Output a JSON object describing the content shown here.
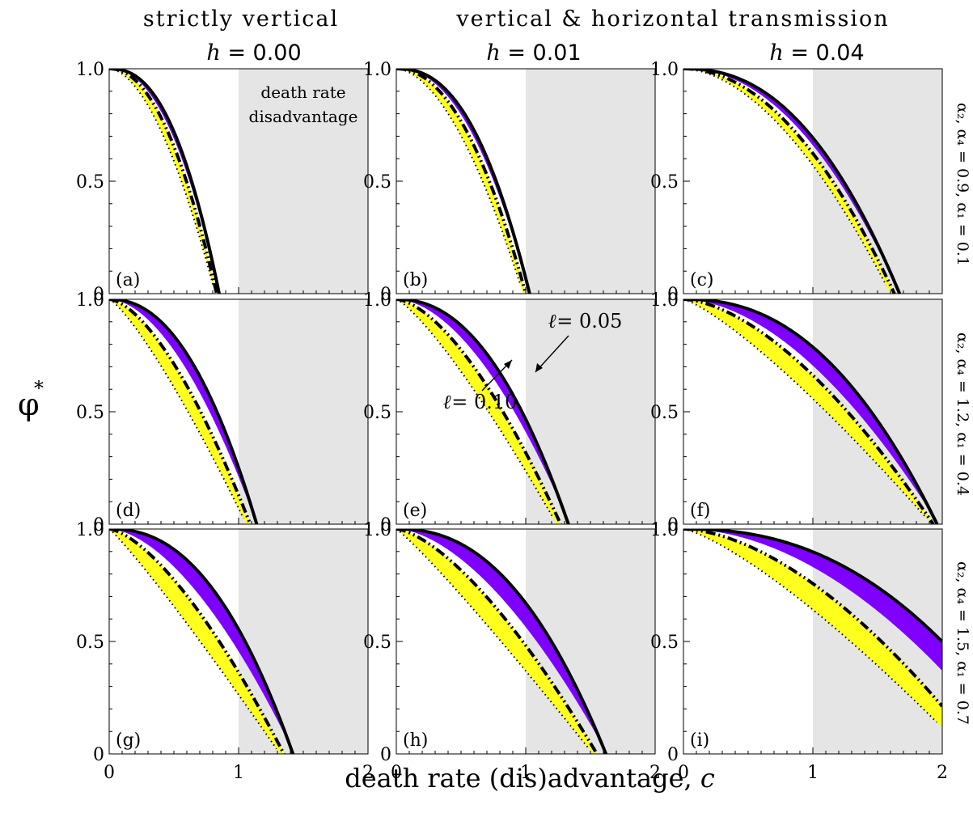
{
  "figure": {
    "col_headers": [
      {
        "line1": "strictly vertical",
        "h_prefix": "h",
        "eq": "=",
        "h_value": "0.00"
      },
      {
        "line1": "",
        "h_prefix": "h",
        "eq": "=",
        "h_value": "0.01"
      },
      {
        "line1": "",
        "h_prefix": "h",
        "eq": "=",
        "h_value": "0.04"
      }
    ],
    "group_header": "vertical & horizontal transmission",
    "row_labels": [
      "α₂, α₄ = 0.9, α₁ = 0.1",
      "α₂, α₄ = 1.2, α₁ = 0.4",
      "α₂, α₄ = 1.5, α₁ = 0.7"
    ],
    "ylabel": "φ",
    "ylabel_sup": "*",
    "xlabel": "death rate (dis)advantage,",
    "xlabel_var": "c",
    "shaded_region_label": [
      "death rate",
      "disadvantage"
    ],
    "annotations": {
      "ell_005": {
        "prefix": "ℓ",
        "text": "= 0.05"
      },
      "ell_010": {
        "prefix": "ℓ",
        "text": "= 0.10"
      }
    }
  },
  "chart_data": {
    "type": "line",
    "x_range": [
      0,
      2
    ],
    "y_range": [
      0,
      1
    ],
    "x_ticks": [
      "0",
      "1",
      "2"
    ],
    "y_ticks": [
      "0",
      "0.5",
      "1.0"
    ],
    "shaded_from_x": 1,
    "colors": {
      "purple": "#7f00ff",
      "yellow": "#ffff1e",
      "shade": "#e5e5e5",
      "line": "#000000"
    },
    "panels": [
      {
        "label": "(a)",
        "row": 0,
        "col": 0,
        "solid_root": 0.85,
        "solid_p": 2.4,
        "dash_root": 0.83,
        "dash_p": 2.1,
        "purple_root": 0.85,
        "purple_p": 2.2,
        "yellow_root": 0.82,
        "yellow_p": 1.8
      },
      {
        "label": "(b)",
        "row": 0,
        "col": 1,
        "solid_root": 1.03,
        "solid_p": 2.4,
        "dash_root": 1.0,
        "dash_p": 2.1,
        "purple_root": 1.03,
        "purple_p": 2.2,
        "yellow_root": 0.98,
        "yellow_p": 1.8
      },
      {
        "label": "(c)",
        "row": 0,
        "col": 2,
        "solid_root": 1.67,
        "solid_p": 2.3,
        "dash_root": 1.63,
        "dash_p": 2.0,
        "purple_root": 1.67,
        "purple_p": 2.1,
        "yellow_root": 1.6,
        "yellow_p": 1.8
      },
      {
        "label": "(d)",
        "row": 1,
        "col": 0,
        "solid_root": 1.14,
        "solid_p": 2.2,
        "dash_root": 1.09,
        "dash_p": 1.6,
        "purple_root": 1.14,
        "purple_p": 1.8,
        "yellow_root": 1.06,
        "yellow_p": 1.25
      },
      {
        "label": "(e)",
        "row": 1,
        "col": 1,
        "solid_root": 1.33,
        "solid_p": 2.2,
        "dash_root": 1.27,
        "dash_p": 1.6,
        "purple_root": 1.34,
        "purple_p": 1.8,
        "yellow_root": 1.24,
        "yellow_p": 1.25
      },
      {
        "label": "(f)",
        "row": 1,
        "col": 2,
        "solid_root": 1.96,
        "solid_p": 2.3,
        "dash_root": 1.93,
        "dash_p": 1.65,
        "purple_root": 1.97,
        "purple_p": 1.8,
        "yellow_root": 1.92,
        "yellow_p": 1.25
      },
      {
        "label": "(g)",
        "row": 2,
        "col": 0,
        "solid_root": 1.42,
        "solid_p": 2.3,
        "dash_root": 1.35,
        "dash_p": 1.5,
        "purple_root": 1.43,
        "purple_p": 1.7,
        "yellow_root": 1.32,
        "yellow_p": 1.1
      },
      {
        "label": "(h)",
        "row": 2,
        "col": 1,
        "solid_root": 1.62,
        "solid_p": 2.3,
        "dash_root": 1.55,
        "dash_p": 1.5,
        "purple_root": 1.63,
        "purple_p": 1.7,
        "yellow_root": 1.52,
        "yellow_p": 1.1
      },
      {
        "label": "(i)",
        "row": 2,
        "col": 2,
        "solid_root": 2.7,
        "solid_p": 2.3,
        "dash_root": 2.3,
        "dash_p": 1.7,
        "purple_root": 2.55,
        "purple_p": 1.9,
        "yellow_root": 2.2,
        "yellow_p": 1.3
      }
    ]
  }
}
